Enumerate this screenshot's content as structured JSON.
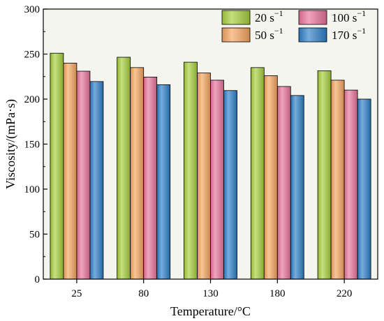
{
  "chart_data": {
    "type": "bar",
    "categories": [
      "25",
      "80",
      "130",
      "180",
      "220"
    ],
    "series": [
      {
        "name": "20 s",
        "sup": "−1",
        "color": "#a6cf3c",
        "values": [
          251,
          246.5,
          241,
          235,
          231.5
        ]
      },
      {
        "name": "50 s",
        "sup": "−1",
        "color": "#f6a55f",
        "values": [
          240,
          235,
          229,
          226,
          221
        ]
      },
      {
        "name": "100 s",
        "sup": "−1",
        "color": "#e9739c",
        "values": [
          231,
          224.5,
          221,
          214,
          210
        ]
      },
      {
        "name": "170 s",
        "sup": "−1",
        "color": "#2e7fc9",
        "values": [
          219.5,
          216,
          209.5,
          204,
          200
        ]
      }
    ],
    "xlabel": "Temperature/°C",
    "ylabel": "Viscosity/(mPa·s)",
    "ylim": [
      0,
      300
    ],
    "yticks": [
      "0",
      "50",
      "100",
      "150",
      "200",
      "250",
      "300"
    ],
    "grid": false,
    "legend_position": "top-right",
    "background_color": "#f5f5f0"
  }
}
